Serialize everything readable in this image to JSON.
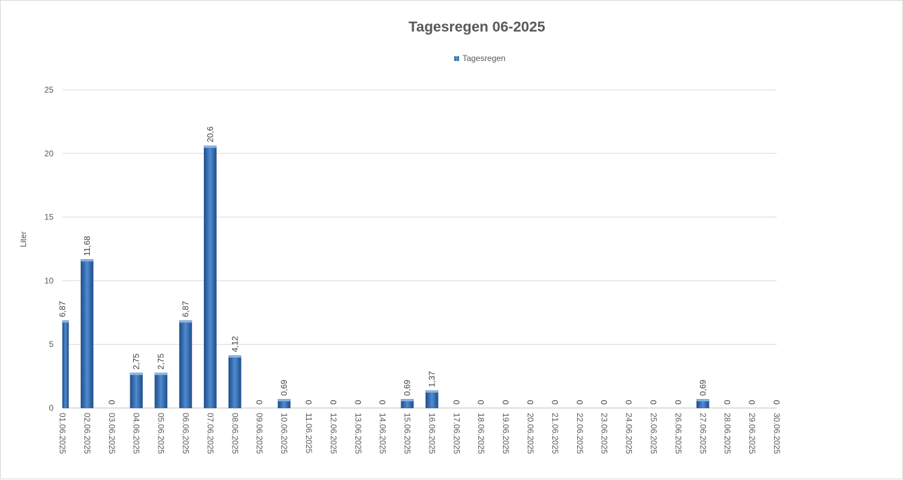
{
  "chart_data": {
    "type": "bar",
    "title": "Tagesregen 06-2025",
    "ylabel": "Liter",
    "xlabel": "",
    "ylim": [
      0,
      25
    ],
    "yticks": [
      0,
      5,
      10,
      15,
      20,
      25
    ],
    "grid": true,
    "legend_position": "top",
    "bar_color": "#3a6fb0",
    "categories": [
      "01.06.2025",
      "02.06.2025",
      "03.06.2025",
      "04.06.2025",
      "05.06.2025",
      "06.06.2025",
      "07.06.2025",
      "08.06.2025",
      "09.06.2025",
      "10.06.2025",
      "11.06.2025",
      "12.06.2025",
      "13.06.2025",
      "14.06.2025",
      "15.06.2025",
      "16.06.2025",
      "17.06.2025",
      "18.06.2025",
      "19.06.2025",
      "20.06.2025",
      "21.06.2025",
      "22.06.2025",
      "23.06.2025",
      "24.06.2025",
      "25.06.2025",
      "26.06.2025",
      "27.06.2025",
      "28.06.2025",
      "29.06.2025",
      "30.06.2025"
    ],
    "series": [
      {
        "name": "Tagesregen",
        "values": [
          6.87,
          11.68,
          0,
          2.75,
          2.75,
          6.87,
          20.6,
          4.12,
          0,
          0.69,
          0,
          0,
          0,
          0,
          0.69,
          1.37,
          0,
          0,
          0,
          0,
          0,
          0,
          0,
          0,
          0,
          0,
          0.69,
          0,
          0,
          0
        ],
        "labels": [
          "6,87",
          "11,68",
          "0",
          "2,75",
          "2,75",
          "6,87",
          "20,6",
          "4,12",
          "0",
          "0,69",
          "0",
          "0",
          "0",
          "0",
          "0,69",
          "1,37",
          "0",
          "0",
          "0",
          "0",
          "0",
          "0",
          "0",
          "0",
          "0",
          "0",
          "0,69",
          "0",
          "0",
          "0"
        ]
      }
    ]
  }
}
